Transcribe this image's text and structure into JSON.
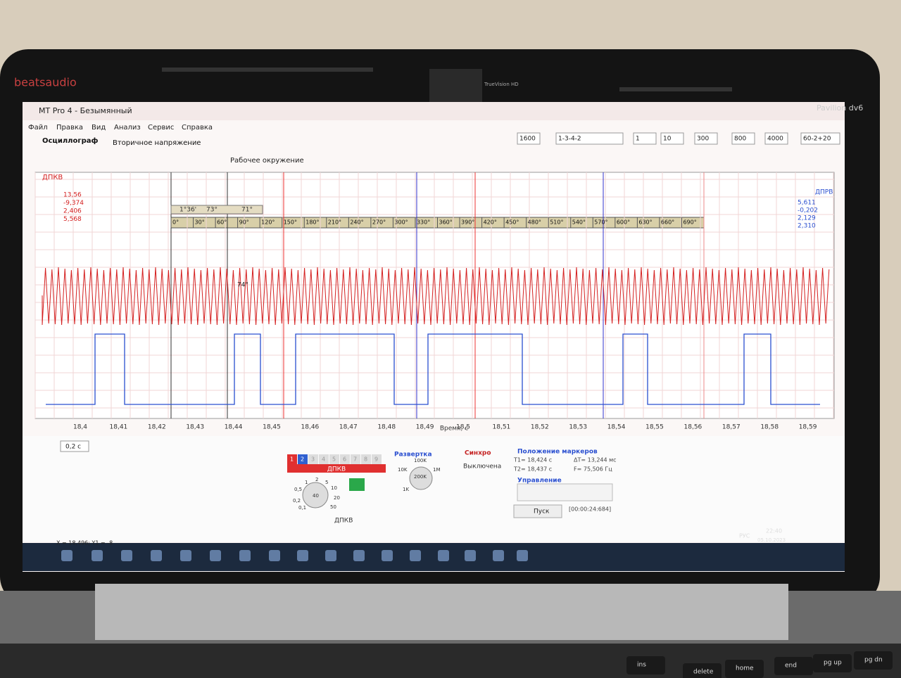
{
  "laptop": {
    "brand": "beatsaudio",
    "camera": "TrueVision HD",
    "model": "Pavilion dv6"
  },
  "window_title": "MT Pro 4 - Безымянный",
  "menu": [
    "Файл",
    "Правка",
    "Вид",
    "Анализ",
    "Сервис",
    "Справка"
  ],
  "tabs": [
    "Осциллограф",
    "Вторичное напряжение"
  ],
  "toolbar": {
    "workspace": "Рабочее окружение",
    "rpm": "1600",
    "order": "1-3-4-2",
    "cylinder": "1",
    "v1": "10",
    "v2": "300",
    "v3": "800",
    "v4": "4000",
    "range": "60-2+20"
  },
  "channel_left": {
    "name": "ДПКВ",
    "readings": [
      "13,56",
      "-9,374",
      "2,406",
      "5,568"
    ]
  },
  "channel_right": {
    "name": "ДПРВ",
    "readings": [
      "5,611",
      "-0,202",
      "2,129",
      "2,310"
    ]
  },
  "angle_markers": [
    "1°36'",
    "73°",
    "71°"
  ],
  "degree_scale": [
    "0°",
    "30°",
    "60°",
    "90°",
    "120°",
    "150°",
    "180°",
    "210°",
    "240°",
    "270°",
    "300°",
    "330°",
    "360°",
    "390°",
    "420°",
    "450°",
    "480°",
    "510°",
    "540°",
    "570°",
    "600°",
    "630°",
    "660°",
    "690°"
  ],
  "cursor_label": "74°",
  "x_axis": {
    "ticks": [
      "18,4",
      "18,41",
      "18,42",
      "18,43",
      "18,44",
      "18,45",
      "18,46",
      "18,47",
      "18,48",
      "18,49",
      "18,5",
      "18,51",
      "18,52",
      "18,53",
      "18,54",
      "18,55",
      "18,56",
      "18,57",
      "18,58",
      "18,59"
    ],
    "label": "Время, с"
  },
  "zoom": "0,2 с",
  "panel": {
    "channel_tabs": [
      "1",
      "2",
      "3",
      "4",
      "5",
      "6",
      "7",
      "8",
      "9"
    ],
    "channel_name": "ДПКВ",
    "sensitivity_labels": [
      "0,5",
      "1",
      "2",
      "5",
      "10",
      "20",
      "50",
      "0,2",
      "0,1",
      "40"
    ],
    "sensor": "ДПКВ",
    "sweep": {
      "title": "Развертка",
      "labels": [
        "100K",
        "10K",
        "1M",
        "200K",
        "1K"
      ]
    },
    "sync": {
      "title": "Синхро",
      "state": "Выключена"
    },
    "markers": {
      "title": "Положение маркеров",
      "t1": "T1= 18,424 с",
      "dt": "ΔT= 13,244 мс",
      "t2": "T2= 18,437 с",
      "f": "F= 75,506 Гц"
    },
    "control": {
      "title": "Управление",
      "start": "Пуск",
      "timer": "[00:00:24:684]"
    }
  },
  "status": "X = 18,496; Y1 = -8",
  "taskbar": {
    "lang": "РУС",
    "time": "22:40",
    "date": "05.10.2023"
  },
  "keyboard": [
    "ins",
    "delete",
    "home",
    "end",
    "pg up",
    "pg dn"
  ]
}
